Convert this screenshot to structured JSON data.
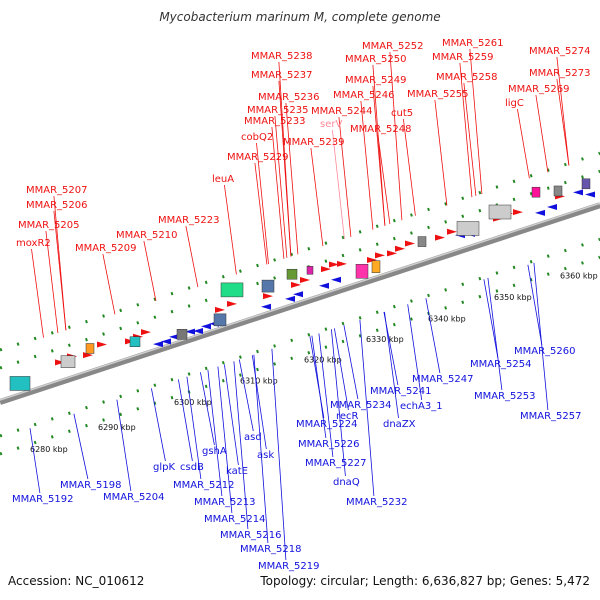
{
  "title": "Mycobacterium marinum M, complete genome",
  "accession": "Accession: NC_010612",
  "summary": "Topology: circular; Length: 6,636,827 bp; Genes: 5,472",
  "ticks": [
    "6280 kbp",
    "6290 kbp",
    "6300 kbp",
    "6310 kbp",
    "6320 kbp",
    "6330 kbp",
    "6340 kbp",
    "6350 kbp",
    "6360 kbp"
  ],
  "colors": {
    "forward": "#ee1111",
    "reverse": "#1111dd",
    "pink": "#ff8899",
    "backbone": "#888888"
  },
  "top_labels": [
    "MMAR_5274",
    "MMAR_5261",
    "MMAR_5252",
    "MMAR_5238",
    "MMAR_5273",
    "MMAR_5259",
    "MMAR_5250",
    "MMAR_5237",
    "MMAR_5269",
    "MMAR_5258",
    "MMAR_5249",
    "MMAR_5255",
    "MMAR_5246",
    "MMAR_5236",
    "ligC",
    "cut5",
    "MMAR_5235",
    "MMAR_5244",
    "MMAR_5233",
    "serV",
    "MMAR_5248",
    "cobQ2",
    "MMAR_5239",
    "MMAR_5229",
    "leuA",
    "MMAR_5207",
    "MMAR_5206",
    "MMAR_5223",
    "MMAR_5205",
    "MMAR_5210",
    "moxR2",
    "MMAR_5209"
  ],
  "bottom_labels": [
    "MMAR_5260",
    "MMAR_5254",
    "MMAR_5247",
    "MMAR_5241",
    "MMAR_5253",
    "echA3_1",
    "MMAR_5234",
    "MMAR_5257",
    "dnaZX",
    "recR",
    "MMAR_5224",
    "asd",
    "MMAR_5226",
    "ask",
    "MMAR_5227",
    "dnaQ",
    "glpK",
    "csdB",
    "gshA",
    "katE",
    "MMAR_5198",
    "MMAR_5212",
    "MMAR_5192",
    "MMAR_5204",
    "MMAR_5213",
    "MMAR_5232",
    "MMAR_5214",
    "MMAR_5216",
    "MMAR_5218",
    "MMAR_5219"
  ]
}
